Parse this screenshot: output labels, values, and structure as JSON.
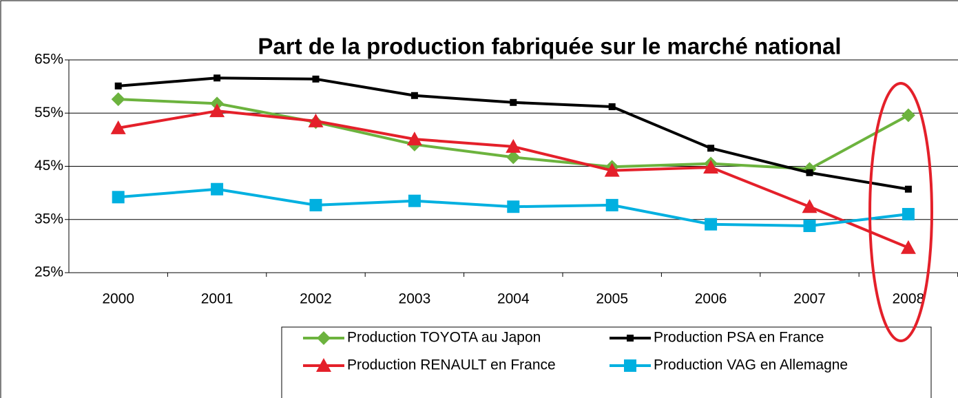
{
  "chart_data": {
    "type": "line",
    "title": "Part de la production fabriquée sur le marché national",
    "categories": [
      "2000",
      "2001",
      "2002",
      "2003",
      "2004",
      "2005",
      "2006",
      "2007",
      "2008"
    ],
    "series": [
      {
        "name": "Production TOYOTA au Japon",
        "color": "#6cb33e",
        "marker": "diamond",
        "values": [
          57.6,
          56.8,
          53.3,
          49.1,
          46.7,
          44.9,
          45.5,
          44.5,
          54.6
        ]
      },
      {
        "name": "Production PSA en France",
        "color": "#000000",
        "marker": "square-small",
        "values": [
          60.1,
          61.6,
          61.4,
          58.3,
          57.0,
          56.2,
          48.4,
          43.8,
          40.7
        ]
      },
      {
        "name": "Production RENAULT en France",
        "color": "#e4202a",
        "marker": "triangle",
        "values": [
          52.2,
          55.4,
          53.5,
          50.1,
          48.7,
          44.2,
          44.8,
          37.4,
          29.7
        ]
      },
      {
        "name": "Production VAG en Allemagne",
        "color": "#00b0e0",
        "marker": "square",
        "values": [
          39.2,
          40.7,
          37.7,
          38.5,
          37.4,
          37.7,
          34.1,
          33.8,
          36.0
        ]
      }
    ],
    "ylim": [
      25,
      65
    ],
    "yticks": [
      {
        "value": 25,
        "label": "25%"
      },
      {
        "value": 35,
        "label": "35%"
      },
      {
        "value": 45,
        "label": "45%"
      },
      {
        "value": 55,
        "label": "55%"
      },
      {
        "value": 65,
        "label": "65%"
      }
    ],
    "grid": true
  }
}
